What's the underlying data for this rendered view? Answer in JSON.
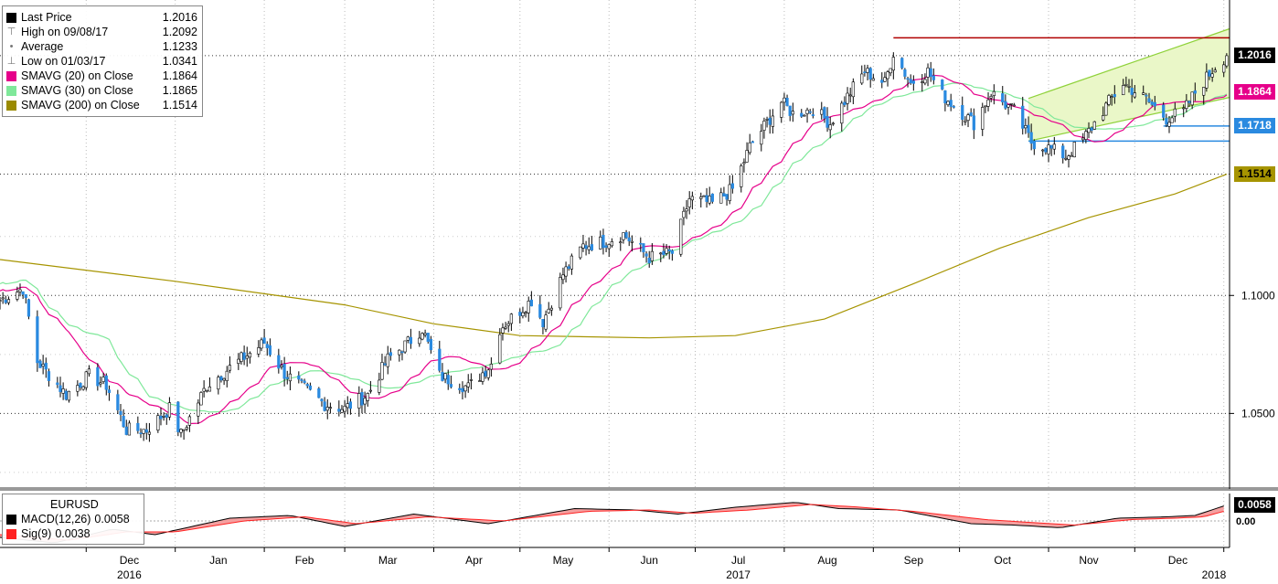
{
  "legend_main": [
    {
      "marker": "square",
      "color": "#000000",
      "label": "Last Price",
      "value": "1.2016"
    },
    {
      "marker": "high",
      "color": "#777777",
      "label": "High on 09/08/17",
      "value": "1.2092"
    },
    {
      "marker": "avg",
      "color": "#777777",
      "label": "Average",
      "value": "1.1233"
    },
    {
      "marker": "low",
      "color": "#777777",
      "label": "Low on 01/03/17",
      "value": "1.0341"
    },
    {
      "marker": "square",
      "color": "#e6008a",
      "label": "SMAVG (20) on Close",
      "value": "1.1864"
    },
    {
      "marker": "square",
      "color": "#7fe89a",
      "label": "SMAVG (30) on Close",
      "value": "1.1865"
    },
    {
      "marker": "square",
      "color": "#9a8a00",
      "label": "SMAVG (200) on Close",
      "value": "1.1514"
    }
  ],
  "legend_macd": {
    "title": "EURUSD",
    "rows": [
      {
        "color": "#000000",
        "label": "MACD(12,26)",
        "value": "0.0058"
      },
      {
        "color": "#ff2020",
        "label": "Sig(9)",
        "value": "0.0038"
      }
    ]
  },
  "price_tags": [
    {
      "text": "1.2016",
      "bg": "#000000",
      "fg": "#ffffff",
      "value": 1.2016
    },
    {
      "text": "1.1864",
      "bg": "#e6008a",
      "fg": "#ffffff",
      "value": 1.1864
    },
    {
      "text": "1.1718",
      "bg": "#2a8ae0",
      "fg": "#ffffff",
      "value": 1.1718
    },
    {
      "text": "1.1514",
      "bg": "#a69400",
      "fg": "#000000",
      "value": 1.1514
    }
  ],
  "macd_tag": {
    "text": "0.0058",
    "bg": "#000000",
    "fg": "#ffffff"
  },
  "chart_data": {
    "type": "candlestick",
    "instrument": "EURUSD",
    "y_ticks": [
      1.05,
      1.1
    ],
    "y_tick_labels": [
      "1.0500",
      "1.1000"
    ],
    "ylim": [
      1.018,
      1.2252
    ],
    "x_axis": {
      "months": [
        "Dec",
        "Jan",
        "Feb",
        "Mar",
        "Apr",
        "May",
        "Jun",
        "Jul",
        "Aug",
        "Sep",
        "Oct",
        "Nov",
        "Dec"
      ],
      "years": [
        {
          "label": "2016",
          "under": "Dec"
        },
        {
          "label": "2017",
          "under": "Jul"
        },
        {
          "label": "2018",
          "under": "end"
        }
      ],
      "range": [
        "2016-11-01",
        "2018-01-03"
      ]
    },
    "candle_colors": {
      "up": "#ffffff",
      "down": "#2a8ae0",
      "wick": "#000000"
    },
    "close_anchors": [
      {
        "d": "2016-11-01",
        "v": 1.098
      },
      {
        "d": "2016-11-09",
        "v": 1.103
      },
      {
        "d": "2016-11-14",
        "v": 1.072
      },
      {
        "d": "2016-11-24",
        "v": 1.058
      },
      {
        "d": "2016-12-02",
        "v": 1.066
      },
      {
        "d": "2016-12-08",
        "v": 1.062
      },
      {
        "d": "2016-12-15",
        "v": 1.043
      },
      {
        "d": "2016-12-22",
        "v": 1.043
      },
      {
        "d": "2016-12-30",
        "v": 1.052
      },
      {
        "d": "2017-01-03",
        "v": 1.041
      },
      {
        "d": "2017-01-12",
        "v": 1.062
      },
      {
        "d": "2017-01-24",
        "v": 1.073
      },
      {
        "d": "2017-02-01",
        "v": 1.08
      },
      {
        "d": "2017-02-08",
        "v": 1.067
      },
      {
        "d": "2017-02-22",
        "v": 1.054
      },
      {
        "d": "2017-03-01",
        "v": 1.052
      },
      {
        "d": "2017-03-09",
        "v": 1.058
      },
      {
        "d": "2017-03-16",
        "v": 1.073
      },
      {
        "d": "2017-03-24",
        "v": 1.081
      },
      {
        "d": "2017-03-28",
        "v": 1.086
      },
      {
        "d": "2017-04-03",
        "v": 1.066
      },
      {
        "d": "2017-04-13",
        "v": 1.061
      },
      {
        "d": "2017-04-21",
        "v": 1.071
      },
      {
        "d": "2017-04-24",
        "v": 1.086
      },
      {
        "d": "2017-05-05",
        "v": 1.098
      },
      {
        "d": "2017-05-09",
        "v": 1.089
      },
      {
        "d": "2017-05-16",
        "v": 1.109
      },
      {
        "d": "2017-05-23",
        "v": 1.121
      },
      {
        "d": "2017-05-31",
        "v": 1.123
      },
      {
        "d": "2017-06-06",
        "v": 1.126
      },
      {
        "d": "2017-06-15",
        "v": 1.116
      },
      {
        "d": "2017-06-23",
        "v": 1.118
      },
      {
        "d": "2017-06-29",
        "v": 1.141
      },
      {
        "d": "2017-07-07",
        "v": 1.139
      },
      {
        "d": "2017-07-14",
        "v": 1.145
      },
      {
        "d": "2017-07-20",
        "v": 1.163
      },
      {
        "d": "2017-07-31",
        "v": 1.182
      },
      {
        "d": "2017-08-04",
        "v": 1.177
      },
      {
        "d": "2017-08-11",
        "v": 1.179
      },
      {
        "d": "2017-08-17",
        "v": 1.173
      },
      {
        "d": "2017-08-25",
        "v": 1.188
      },
      {
        "d": "2017-08-29",
        "v": 1.195
      },
      {
        "d": "2017-09-05",
        "v": 1.19
      },
      {
        "d": "2017-09-08",
        "v": 1.203
      },
      {
        "d": "2017-09-14",
        "v": 1.19
      },
      {
        "d": "2017-09-20",
        "v": 1.195
      },
      {
        "d": "2017-09-25",
        "v": 1.185
      },
      {
        "d": "2017-10-06",
        "v": 1.173
      },
      {
        "d": "2017-10-12",
        "v": 1.186
      },
      {
        "d": "2017-10-20",
        "v": 1.178
      },
      {
        "d": "2017-10-26",
        "v": 1.165
      },
      {
        "d": "2017-10-31",
        "v": 1.163
      },
      {
        "d": "2017-11-07",
        "v": 1.159
      },
      {
        "d": "2017-11-13",
        "v": 1.166
      },
      {
        "d": "2017-11-22",
        "v": 1.182
      },
      {
        "d": "2017-11-27",
        "v": 1.19
      },
      {
        "d": "2017-12-05",
        "v": 1.183
      },
      {
        "d": "2017-12-12",
        "v": 1.175
      },
      {
        "d": "2017-12-18",
        "v": 1.178
      },
      {
        "d": "2017-12-22",
        "v": 1.186
      },
      {
        "d": "2017-12-29",
        "v": 1.197
      },
      {
        "d": "2018-01-02",
        "v": 1.2016
      }
    ],
    "sma200": [
      {
        "d": "2016-11-01",
        "v": 1.1152
      },
      {
        "d": "2017-01-01",
        "v": 1.106
      },
      {
        "d": "2017-03-01",
        "v": 1.096
      },
      {
        "d": "2017-04-01",
        "v": 1.088
      },
      {
        "d": "2017-05-01",
        "v": 1.083
      },
      {
        "d": "2017-06-15",
        "v": 1.082
      },
      {
        "d": "2017-07-15",
        "v": 1.083
      },
      {
        "d": "2017-08-15",
        "v": 1.09
      },
      {
        "d": "2017-09-15",
        "v": 1.105
      },
      {
        "d": "2017-10-15",
        "v": 1.12
      },
      {
        "d": "2017-11-15",
        "v": 1.133
      },
      {
        "d": "2017-12-15",
        "v": 1.143
      },
      {
        "d": "2018-01-02",
        "v": 1.1514
      }
    ],
    "sma20_last": 1.1864,
    "sma30_last": 1.1865,
    "high_line": {
      "value": 1.2092,
      "from": "2017-09-08",
      "to": "2018-01-03",
      "color": "#b00000"
    },
    "level_lines": [
      {
        "value": 1.1718,
        "from": "2017-12-11",
        "to": "2018-01-03",
        "color": "#2a8ae0"
      },
      {
        "value": 1.1654,
        "from": "2017-10-25",
        "to": "2018-01-03",
        "color": "#2a8ae0"
      }
    ],
    "channel": {
      "lower": [
        {
          "d": "2017-10-25",
          "v": 1.1654
        },
        {
          "d": "2018-01-03",
          "v": 1.1839
        }
      ],
      "upper": [
        {
          "d": "2017-10-25",
          "v": 1.1835
        },
        {
          "d": "2018-01-03",
          "v": 1.213
        }
      ],
      "fill": "#eaf7c8",
      "edge": "#8fd23a"
    },
    "macd": {
      "ylim": [
        -0.009,
        0.01
      ],
      "tick": "0.00",
      "line": [
        {
          "d": "2016-11-01",
          "v": -0.006
        },
        {
          "d": "2016-11-20",
          "v": -0.008
        },
        {
          "d": "2016-12-10",
          "v": -0.003
        },
        {
          "d": "2016-12-25",
          "v": -0.005
        },
        {
          "d": "2017-01-20",
          "v": 0.001
        },
        {
          "d": "2017-02-10",
          "v": 0.002
        },
        {
          "d": "2017-03-01",
          "v": -0.002
        },
        {
          "d": "2017-03-25",
          "v": 0.0025
        },
        {
          "d": "2017-04-20",
          "v": -0.001
        },
        {
          "d": "2017-05-20",
          "v": 0.0045
        },
        {
          "d": "2017-06-10",
          "v": 0.004
        },
        {
          "d": "2017-06-25",
          "v": 0.0025
        },
        {
          "d": "2017-07-15",
          "v": 0.005
        },
        {
          "d": "2017-08-05",
          "v": 0.0068
        },
        {
          "d": "2017-08-20",
          "v": 0.0045
        },
        {
          "d": "2017-09-10",
          "v": 0.004
        },
        {
          "d": "2017-10-05",
          "v": -0.001
        },
        {
          "d": "2017-10-20",
          "v": -0.0015
        },
        {
          "d": "2017-11-05",
          "v": -0.0025
        },
        {
          "d": "2017-11-25",
          "v": 0.001
        },
        {
          "d": "2017-12-12",
          "v": 0.0015
        },
        {
          "d": "2017-12-22",
          "v": 0.002
        },
        {
          "d": "2018-01-02",
          "v": 0.0058
        }
      ],
      "signal": [
        {
          "d": "2016-11-01",
          "v": -0.005
        },
        {
          "d": "2016-11-25",
          "v": -0.007
        },
        {
          "d": "2016-12-15",
          "v": -0.004
        },
        {
          "d": "2017-01-01",
          "v": -0.004
        },
        {
          "d": "2017-01-25",
          "v": 0.0
        },
        {
          "d": "2017-02-15",
          "v": 0.0015
        },
        {
          "d": "2017-03-05",
          "v": -0.001
        },
        {
          "d": "2017-03-30",
          "v": 0.0015
        },
        {
          "d": "2017-04-25",
          "v": 0.0
        },
        {
          "d": "2017-05-25",
          "v": 0.0035
        },
        {
          "d": "2017-06-15",
          "v": 0.004
        },
        {
          "d": "2017-06-30",
          "v": 0.0028
        },
        {
          "d": "2017-07-20",
          "v": 0.004
        },
        {
          "d": "2017-08-10",
          "v": 0.006
        },
        {
          "d": "2017-08-25",
          "v": 0.0052
        },
        {
          "d": "2017-09-15",
          "v": 0.0035
        },
        {
          "d": "2017-10-10",
          "v": 0.0005
        },
        {
          "d": "2017-10-25",
          "v": -0.0005
        },
        {
          "d": "2017-11-10",
          "v": -0.0015
        },
        {
          "d": "2017-11-30",
          "v": 0.0005
        },
        {
          "d": "2017-12-15",
          "v": 0.001
        },
        {
          "d": "2017-12-25",
          "v": 0.0015
        },
        {
          "d": "2018-01-02",
          "v": 0.0038
        }
      ]
    }
  }
}
